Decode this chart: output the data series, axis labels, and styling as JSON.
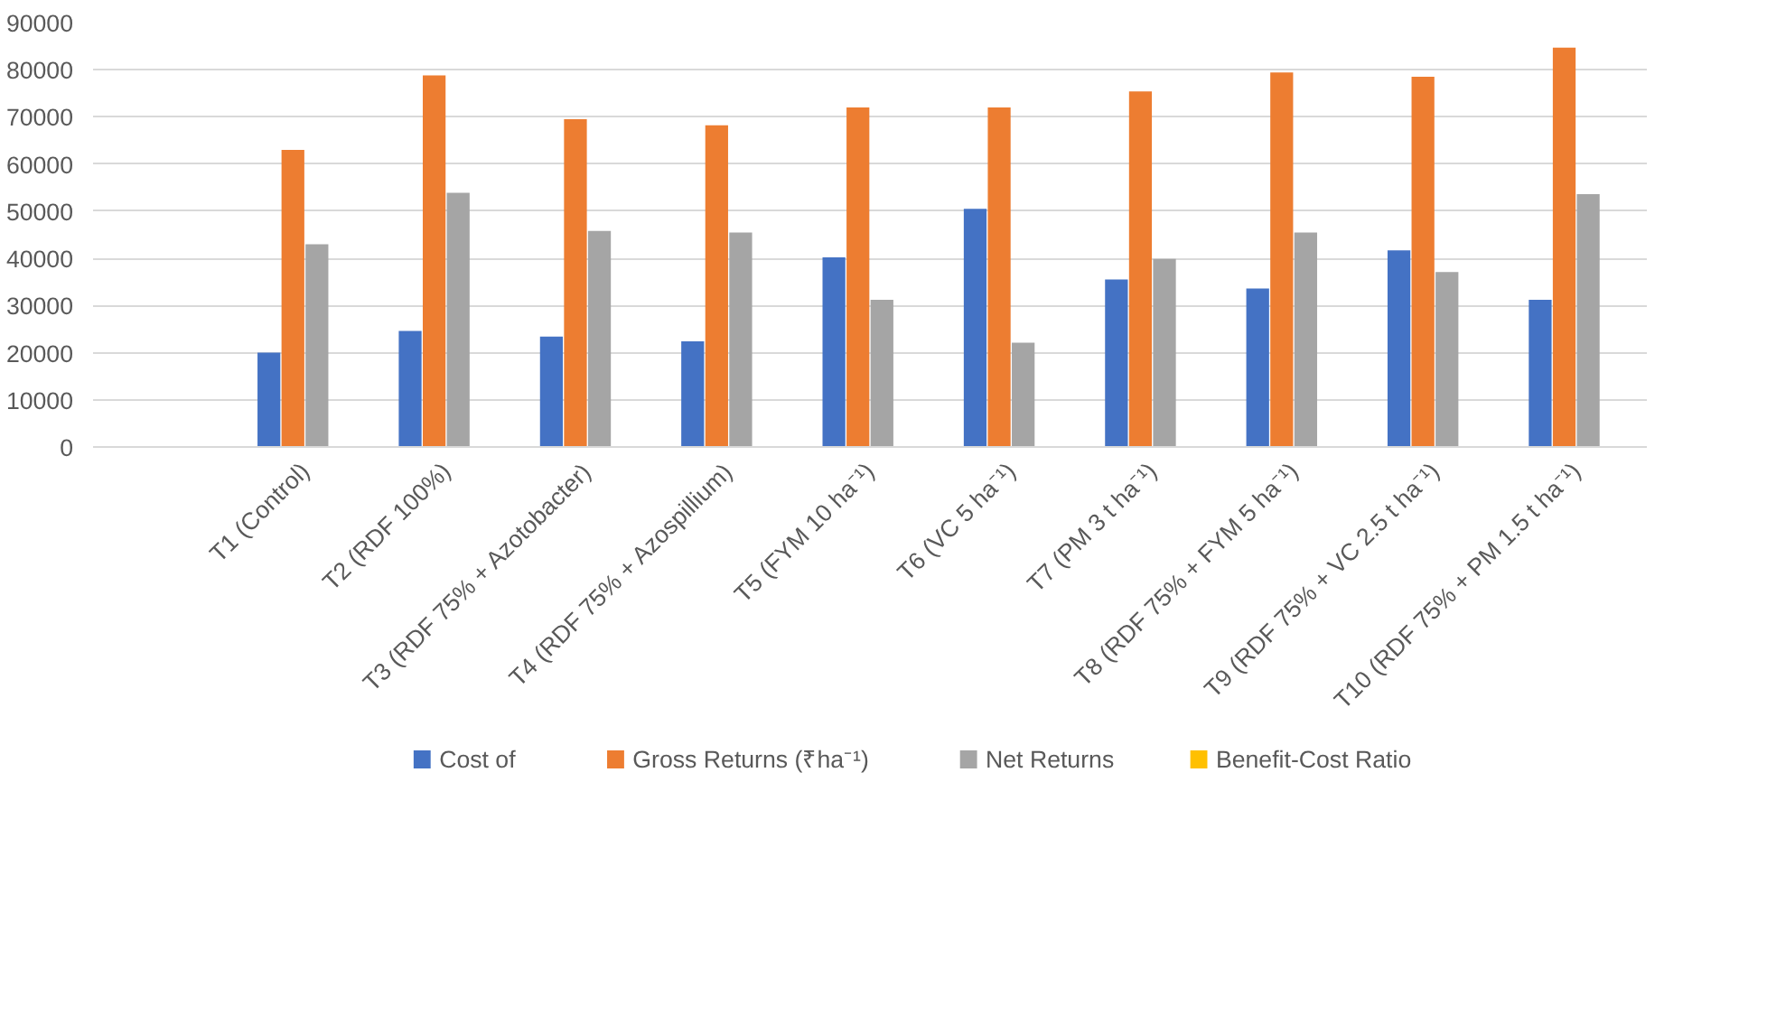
{
  "chart_data": {
    "type": "bar",
    "categories": [
      null,
      "T1 (Control)",
      "T2 (RDF 100%)",
      "T3 (RDF 75% + Azotobacter)",
      "T4 (RDF 75% + Azospillium)",
      "T5 (FYM 10 ha⁻¹)",
      "T6 (VC 5 ha⁻¹)",
      "T7 (PM 3 t ha⁻¹)",
      "T8 (RDF 75% + FYM 5 ha⁻¹)",
      "T9 (RDF 75% + VC 2.5 t ha⁻¹)",
      "T10 (RDF 75% + PM 1.5 t ha⁻¹)"
    ],
    "series": [
      {
        "name": "Cost  of",
        "color": "#4472c4",
        "values": [
          null,
          20000,
          24600,
          23400,
          22400,
          40200,
          50500,
          35500,
          33600,
          41700,
          31200
        ]
      },
      {
        "name": "Gross Returns (₹ha⁻¹)",
        "color": "#ed7d31",
        "values": [
          null,
          63000,
          78800,
          69500,
          68200,
          72000,
          72000,
          75400,
          79400,
          78500,
          84700
        ]
      },
      {
        "name": "Net Returns",
        "color": "#a5a5a5",
        "values": [
          null,
          43000,
          53900,
          45800,
          45500,
          31200,
          22100,
          39900,
          45500,
          37100,
          53600
        ]
      },
      {
        "name": "Benefit-Cost Ratio",
        "color": "#ffc000",
        "values": [
          null,
          null,
          null,
          null,
          null,
          null,
          null,
          null,
          null,
          null,
          null
        ]
      }
    ],
    "ylim": [
      0,
      90000
    ],
    "yticks": [
      0,
      10000,
      20000,
      30000,
      40000,
      50000,
      60000,
      70000,
      80000,
      90000
    ],
    "grid": "y",
    "legend": "bottom"
  }
}
